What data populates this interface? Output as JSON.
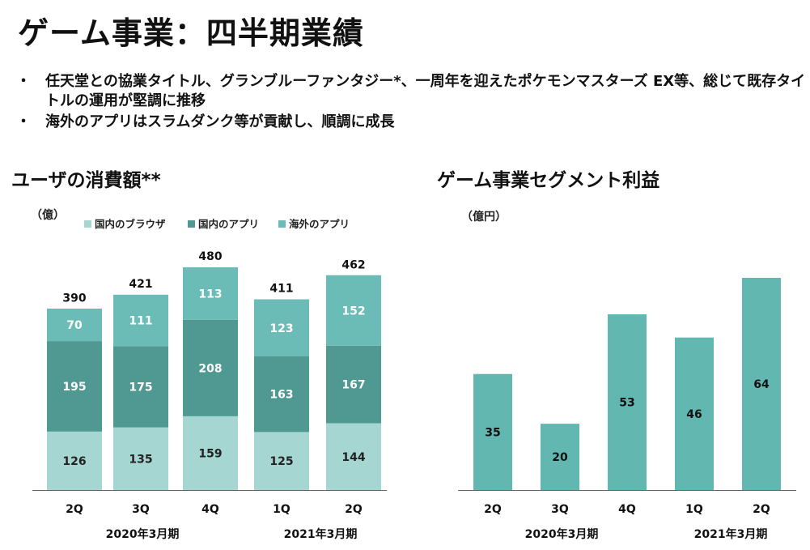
{
  "title": "ゲーム事業：四半期業績",
  "bullets": [
    "任天堂との協業タイトル、グランブルーファンタジー*、一周年を迎えたポケモンマスターズ EX等、総じて既存タイトルの運用が堅調に推移",
    "海外のアプリはスラムダンク等が貢献し、順調に成長"
  ],
  "bullet_marker": "・",
  "colors": {
    "browser": "#a6d6d2",
    "domestic_app": "#4f9992",
    "overseas_app": "#6bbcb6",
    "segment": "#62b8b1",
    "axis": "#666666"
  },
  "chart_data": [
    {
      "type": "bar",
      "stacked": true,
      "title": "ユーザの消費額**",
      "unit": "（億）",
      "categories": [
        "2Q",
        "3Q",
        "4Q",
        "1Q",
        "2Q"
      ],
      "period_labels": [
        "2020年3月期",
        "2021年3月期"
      ],
      "series": [
        {
          "name": "国内のブラウザ",
          "values": [
            126,
            135,
            159,
            125,
            144
          ]
        },
        {
          "name": "国内のアプリ",
          "values": [
            195,
            175,
            208,
            163,
            167
          ]
        },
        {
          "name": "海外のアプリ",
          "values": [
            70,
            111,
            113,
            123,
            152
          ]
        }
      ],
      "totals": [
        390,
        421,
        480,
        411,
        462
      ],
      "legend_position": "top"
    },
    {
      "type": "bar",
      "title": "ゲーム事業セグメント利益",
      "unit": "（億円）",
      "categories": [
        "2Q",
        "3Q",
        "4Q",
        "1Q",
        "2Q"
      ],
      "period_labels": [
        "2020年3月期",
        "2021年3月期"
      ],
      "values": [
        35,
        20,
        53,
        46,
        64
      ]
    }
  ]
}
